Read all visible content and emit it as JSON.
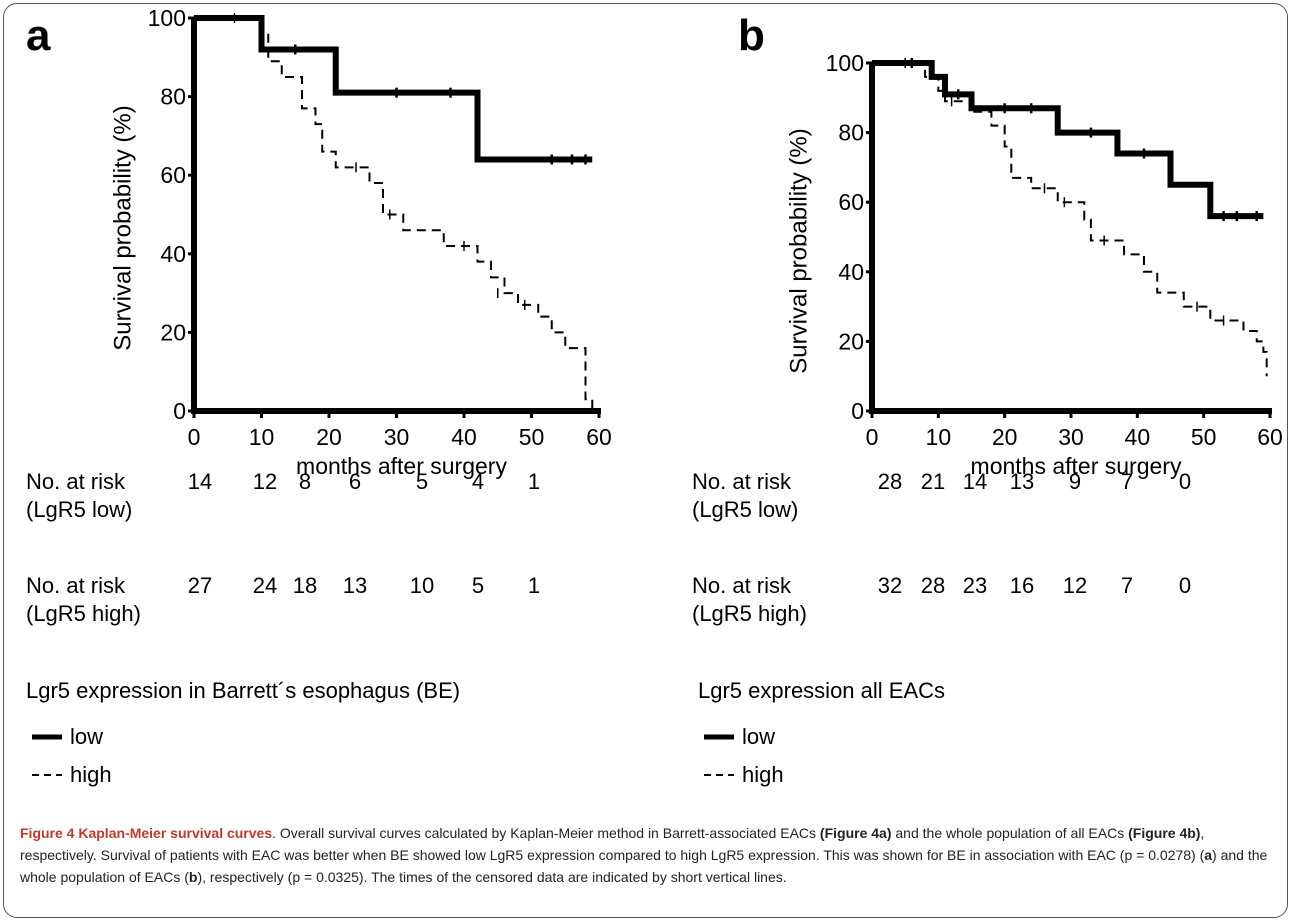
{
  "figure_caption": {
    "label": "Figure 4",
    "title": "Kaplan-Meier survival curves",
    "sentences": [
      ". Overall survival curves calculated by Kaplan-Meier method in Barrett-associated EACs ",
      "(Figure 4a)",
      " and the whole population of all EACs ",
      "(Figure 4b)",
      ", respectively. Survival of patients with EAC was better when BE showed low LgR5 expression compared to high LgR5 expression. This was shown for BE in association with EAC (p = 0.0278) (",
      "a",
      ") and the whole population of EACs (",
      "b",
      "), respectively (p = 0.0325). The times of the censored data are indicated by short vertical lines."
    ]
  },
  "panels": [
    {
      "letter": "a",
      "risk_table": {
        "low_label": "No. at risk\n(LgR5 low)",
        "high_label": "No. at risk\n(LgR5 high)",
        "low_values": [
          "14",
          "12",
          "8",
          "6",
          "5",
          "4",
          "1"
        ],
        "high_values": [
          "27",
          "24",
          "18",
          "13",
          "10",
          "5",
          "1"
        ]
      },
      "legend": {
        "title": "Lgr5 expression in Barrett´s esophagus (BE)",
        "low": "low",
        "high": "high"
      }
    },
    {
      "letter": "b",
      "risk_table": {
        "low_label": "No. at risk\n(LgR5 low)",
        "high_label": "No. at risk\n(LgR5 high)",
        "low_values": [
          "28",
          "21",
          "14",
          "13",
          "9",
          "7",
          "0"
        ],
        "high_values": [
          "32",
          "28",
          "23",
          "16",
          "12",
          "7",
          "0"
        ]
      },
      "legend": {
        "title": "Lgr5 expression all EACs",
        "low": "low",
        "high": "high"
      }
    }
  ],
  "chart_data": [
    {
      "type": "line",
      "panel": "a",
      "title": "",
      "xlabel": "months after surgery",
      "ylabel": "Survival probability (%)",
      "xlim": [
        0,
        60
      ],
      "ylim": [
        0,
        100
      ],
      "xticks": [
        "0",
        "10",
        "20",
        "30",
        "40",
        "50",
        "60"
      ],
      "yticks": [
        "0",
        "20",
        "40",
        "60",
        "80",
        "100"
      ],
      "series": [
        {
          "name": "low",
          "style": "solid",
          "steps": [
            [
              0,
              100
            ],
            [
              10,
              92
            ],
            [
              21,
              81
            ],
            [
              42,
              64
            ],
            [
              59,
              64
            ]
          ],
          "censored": [
            [
              15,
              92
            ],
            [
              30,
              81
            ],
            [
              38,
              81
            ],
            [
              53,
              64
            ],
            [
              56,
              64
            ],
            [
              58,
              64
            ]
          ]
        },
        {
          "name": "high",
          "style": "dashed",
          "steps": [
            [
              0,
              100
            ],
            [
              10,
              96
            ],
            [
              11,
              89
            ],
            [
              13,
              85
            ],
            [
              16,
              77
            ],
            [
              18,
              73
            ],
            [
              19,
              66
            ],
            [
              21,
              62
            ],
            [
              26,
              58
            ],
            [
              28,
              50
            ],
            [
              31,
              46
            ],
            [
              37,
              42
            ],
            [
              42,
              38
            ],
            [
              44,
              34
            ],
            [
              46,
              30
            ],
            [
              48,
              27
            ],
            [
              51,
              24
            ],
            [
              53,
              20
            ],
            [
              55,
              16
            ],
            [
              58,
              3
            ],
            [
              59,
              0
            ]
          ],
          "censored": [
            [
              6,
              100
            ],
            [
              24,
              62
            ],
            [
              29,
              50
            ],
            [
              40,
              42
            ],
            [
              45,
              30
            ],
            [
              49,
              27
            ]
          ]
        }
      ]
    },
    {
      "type": "line",
      "panel": "b",
      "title": "",
      "xlabel": "months after surgery",
      "ylabel": "Survival probability (%)",
      "xlim": [
        0,
        60
      ],
      "ylim": [
        0,
        100
      ],
      "xticks": [
        "0",
        "10",
        "20",
        "30",
        "40",
        "50",
        "60"
      ],
      "yticks": [
        "0",
        "20",
        "40",
        "60",
        "80",
        "100"
      ],
      "series": [
        {
          "name": "low",
          "style": "solid",
          "steps": [
            [
              0,
              100
            ],
            [
              9,
              96
            ],
            [
              11,
              91
            ],
            [
              15,
              87
            ],
            [
              28,
              80
            ],
            [
              37,
              74
            ],
            [
              45,
              65
            ],
            [
              51,
              56
            ],
            [
              59,
              56
            ]
          ],
          "censored": [
            [
              6,
              100
            ],
            [
              13,
              91
            ],
            [
              20,
              87
            ],
            [
              24,
              87
            ],
            [
              33,
              80
            ],
            [
              41,
              74
            ],
            [
              53,
              56
            ],
            [
              55,
              56
            ],
            [
              58,
              56
            ]
          ]
        },
        {
          "name": "high",
          "style": "dashed",
          "steps": [
            [
              0,
              100
            ],
            [
              8,
              96
            ],
            [
              10,
              92
            ],
            [
              11,
              89
            ],
            [
              15,
              86
            ],
            [
              18,
              82
            ],
            [
              20,
              76
            ],
            [
              21,
              67
            ],
            [
              24,
              64
            ],
            [
              28,
              60
            ],
            [
              32,
              55
            ],
            [
              33,
              49
            ],
            [
              38,
              45
            ],
            [
              41,
              40
            ],
            [
              43,
              34
            ],
            [
              47,
              30
            ],
            [
              51,
              26
            ],
            [
              56,
              23
            ],
            [
              58,
              20
            ],
            [
              59,
              17
            ],
            [
              59.5,
              10
            ]
          ],
          "censored": [
            [
              5,
              100
            ],
            [
              12,
              89
            ],
            [
              26,
              64
            ],
            [
              29,
              60
            ],
            [
              35,
              49
            ],
            [
              49,
              30
            ],
            [
              53,
              26
            ]
          ]
        }
      ]
    }
  ]
}
